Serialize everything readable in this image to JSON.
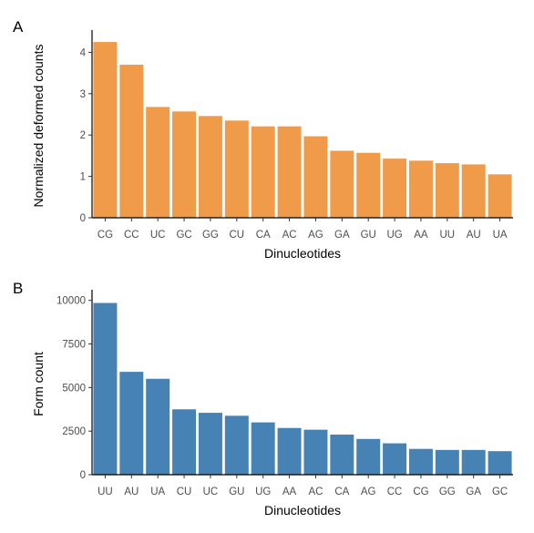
{
  "chart_data": [
    {
      "panel": "A",
      "type": "bar",
      "categories": [
        "CG",
        "CC",
        "UC",
        "GC",
        "GG",
        "CU",
        "CA",
        "AC",
        "AG",
        "GA",
        "GU",
        "UG",
        "AA",
        "UU",
        "AU",
        "UA"
      ],
      "values": [
        4.25,
        3.7,
        2.68,
        2.57,
        2.46,
        2.35,
        2.21,
        2.21,
        1.97,
        1.62,
        1.57,
        1.43,
        1.38,
        1.32,
        1.29,
        1.05
      ],
      "xlabel": "Dinucleotides",
      "ylabel": "Normalized deformed counts",
      "yticks": [
        0,
        1,
        2,
        3,
        4
      ],
      "ylim": [
        0,
        4.45
      ],
      "color": "#EF9B4A",
      "grid": false,
      "legend": "none"
    },
    {
      "panel": "B",
      "type": "bar",
      "categories": [
        "UU",
        "AU",
        "UA",
        "CU",
        "UC",
        "GU",
        "UG",
        "AA",
        "AC",
        "CA",
        "AG",
        "CC",
        "CG",
        "GG",
        "GA",
        "GC"
      ],
      "values": [
        9850,
        5900,
        5500,
        3750,
        3550,
        3380,
        3000,
        2680,
        2580,
        2300,
        2050,
        1800,
        1480,
        1420,
        1420,
        1350
      ],
      "xlabel": "Dinucleotides",
      "ylabel": "Form count",
      "yticks": [
        0,
        2500,
        5000,
        7500,
        10000
      ],
      "ylim": [
        0,
        10400
      ],
      "color": "#4682B4",
      "grid": false,
      "legend": "none"
    }
  ]
}
